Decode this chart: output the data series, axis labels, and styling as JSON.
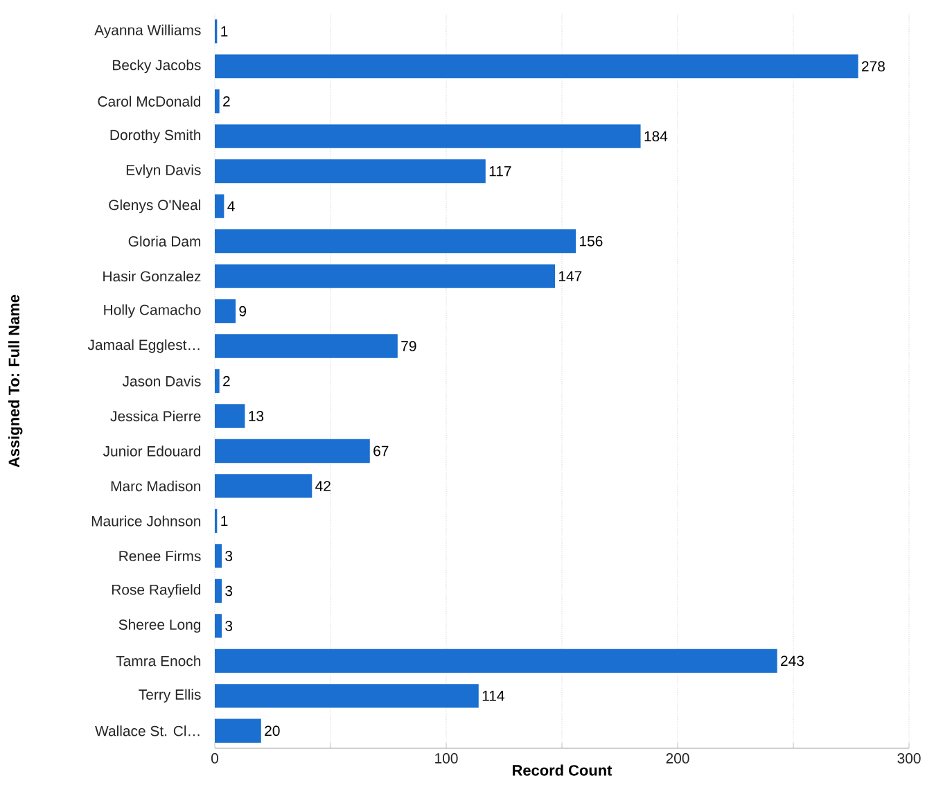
{
  "chart_data": {
    "type": "bar",
    "orientation": "horizontal",
    "xlabel": "Record Count",
    "ylabel": "Assigned To: Full Name",
    "categories": [
      "Ayanna Williams",
      "Becky Jacobs",
      "Carol McDonald",
      "Dorothy Smith",
      "Evlyn Davis",
      "Glenys O'Neal",
      "Gloria Dam",
      "Hasir Gonzalez",
      "Holly Camacho",
      "Jamaal Egglest…",
      "Jason Davis",
      "Jessica Pierre",
      "Junior Edouard",
      "Marc Madison",
      "Maurice Johnson",
      "Renee Firms",
      "Rose Rayfield",
      "Sheree Long",
      "Tamra Enoch",
      "Terry Ellis",
      "Wallace St. Cl…"
    ],
    "values": [
      1,
      278,
      2,
      184,
      117,
      4,
      156,
      147,
      9,
      79,
      2,
      13,
      67,
      42,
      1,
      3,
      3,
      3,
      243,
      114,
      20
    ],
    "color": "#1a6fd0",
    "data_labels": true,
    "xlim": [
      0,
      300
    ],
    "xticks": [
      0,
      {
        "value": 50,
        "label": null
      },
      100,
      {
        "value": 150,
        "label": null
      },
      200,
      {
        "value": 250,
        "label": null
      },
      300
    ],
    "grid": "x"
  }
}
